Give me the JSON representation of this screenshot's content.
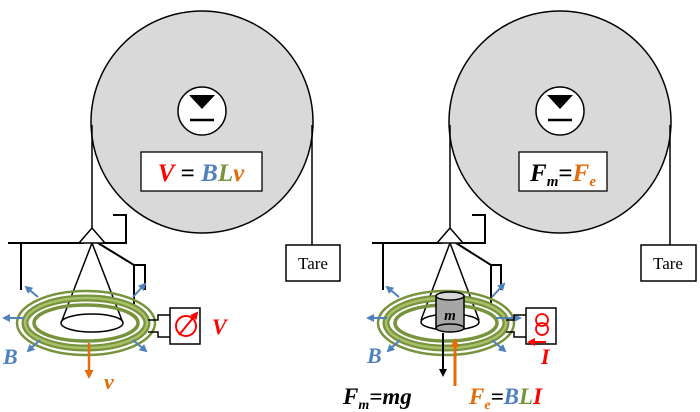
{
  "colors": {
    "wheel_fill": "#d9d9d9",
    "coil_green": "#77933c",
    "field_blue": "#4f81bd",
    "velocity_orange": "#e46c0a",
    "voltage_red": "#ff0000",
    "line": "#000000"
  },
  "icons": {
    "pivot": "pivot-icon",
    "voltmeter": "voltmeter-icon",
    "current_source": "current-source-icon"
  },
  "left_panel": {
    "equation": {
      "lhs": "V",
      "eq": " = ",
      "b": "B",
      "l": "L",
      "v": "v"
    },
    "tare_label": "Tare",
    "voltage_label": "V",
    "field_label": "B",
    "velocity_label": "v"
  },
  "right_panel": {
    "equation": {
      "f": "F",
      "m_sub": "m",
      "eq": "=",
      "fe": "F",
      "e_sub": "e"
    },
    "tare_label": "Tare",
    "mass_label": "m",
    "current_label": "I",
    "field_label": "B",
    "fm_formula": {
      "f": "F",
      "sub": "m",
      "rest": "=mg"
    },
    "fe_formula": {
      "f": "F",
      "sub": "e",
      "eq": "=",
      "b": "B",
      "l": "L",
      "i": "I"
    }
  }
}
